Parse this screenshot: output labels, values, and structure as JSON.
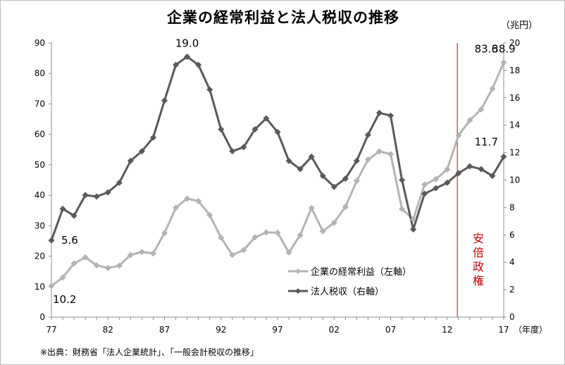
{
  "chart_data": {
    "type": "line",
    "title": "企業の経常利益と法人税収の推移",
    "unit_label": "（兆円）",
    "xlabel": "（年度）",
    "x_years": [
      1977,
      1978,
      1979,
      1980,
      1981,
      1982,
      1983,
      1984,
      1985,
      1986,
      1987,
      1988,
      1989,
      1990,
      1991,
      1992,
      1993,
      1994,
      1995,
      1996,
      1997,
      1998,
      1999,
      2000,
      2001,
      2002,
      2003,
      2004,
      2005,
      2006,
      2007,
      2008,
      2009,
      2010,
      2011,
      2012,
      2013,
      2014,
      2015,
      2016,
      2017
    ],
    "x_tick_labels": [
      {
        "year": 1977,
        "label": "77"
      },
      {
        "year": 1982,
        "label": "82"
      },
      {
        "year": 1987,
        "label": "87"
      },
      {
        "year": 1992,
        "label": "92"
      },
      {
        "year": 1997,
        "label": "97"
      },
      {
        "year": 2002,
        "label": "02"
      },
      {
        "year": 2007,
        "label": "07"
      },
      {
        "year": 2012,
        "label": "12"
      },
      {
        "year": 2017,
        "label": "17"
      }
    ],
    "y_left": {
      "min": 0,
      "max": 90,
      "ticks": [
        "0",
        "10",
        "20",
        "30",
        "40",
        "50",
        "60",
        "70",
        "80",
        "90"
      ]
    },
    "y_right": {
      "min": 0,
      "max": 20,
      "ticks": [
        "0",
        "2",
        "4",
        "6",
        "8",
        "10",
        "12",
        "14",
        "16",
        "18",
        "20"
      ]
    },
    "series": [
      {
        "name": "企業の経常利益（左軸）",
        "axis": "left",
        "color": "#b3b3b3",
        "values": [
          10.2,
          13.0,
          17.6,
          19.6,
          17.0,
          16.1,
          16.9,
          20.4,
          21.4,
          20.9,
          27.6,
          35.9,
          38.9,
          38.1,
          33.5,
          26.1,
          20.4,
          22.0,
          26.2,
          27.8,
          27.7,
          21.2,
          26.9,
          35.8,
          28.2,
          31.0,
          36.2,
          44.7,
          51.7,
          54.4,
          53.5,
          35.5,
          32.1,
          43.5,
          45.3,
          48.5,
          59.6,
          64.6,
          68.2,
          75.0,
          83.6
        ]
      },
      {
        "name": "法人税収（右軸）",
        "axis": "right",
        "color": "#595959",
        "values": [
          5.6,
          7.9,
          7.4,
          8.9,
          8.8,
          9.1,
          9.8,
          11.4,
          12.1,
          13.1,
          15.8,
          18.4,
          19.0,
          18.4,
          16.6,
          13.7,
          12.1,
          12.4,
          13.7,
          14.5,
          13.5,
          11.4,
          10.8,
          11.7,
          10.3,
          9.5,
          10.1,
          11.4,
          13.3,
          14.9,
          14.7,
          10.0,
          6.4,
          9.0,
          9.4,
          9.8,
          10.5,
          11.0,
          10.8,
          10.3,
          11.7
        ]
      }
    ],
    "annotations": {
      "profit_max": "38.9",
      "profit_start": "10.2",
      "profit_end": "83.6",
      "tax_max": "19.0",
      "tax_start": "5.6",
      "tax_end": "11.7",
      "abe_marker_year": 2012.9,
      "abe_label": "安倍政権",
      "abe_color": "#c00000"
    },
    "grid": false,
    "legend_position": "lower-right-center"
  },
  "source_note": "※出典：財務省「法人企業統計」、「一般会計税収の推移」"
}
